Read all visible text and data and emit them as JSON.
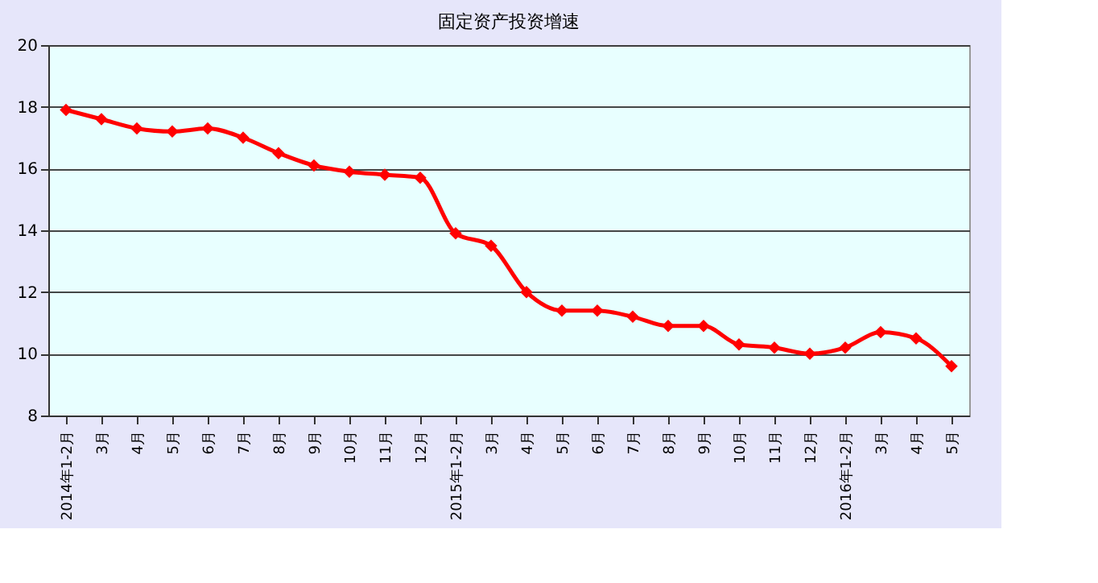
{
  "chart_data": {
    "type": "line",
    "title": "固定资产投资增速",
    "categories": [
      "2014年1-2月",
      "3月",
      "4月",
      "5月",
      "6月",
      "7月",
      "8月",
      "9月",
      "10月",
      "11月",
      "12月",
      "2015年1-2月",
      "3月",
      "4月",
      "5月",
      "6月",
      "7月",
      "8月",
      "9月",
      "10月",
      "11月",
      "12月",
      "2016年1-2月",
      "3月",
      "4月",
      "5月"
    ],
    "series": [
      {
        "color": "#ff0000",
        "values": [
          17.9,
          17.6,
          17.3,
          17.2,
          17.3,
          17.0,
          16.5,
          16.1,
          15.9,
          15.8,
          15.7,
          13.9,
          13.5,
          12.0,
          11.4,
          11.4,
          11.2,
          10.9,
          10.9,
          10.3,
          10.2,
          10.0,
          10.2,
          10.7,
          10.5,
          9.6
        ]
      }
    ],
    "ylim": [
      8,
      20
    ],
    "yticks": [
      8,
      10,
      12,
      14,
      16,
      18,
      20
    ],
    "grid": "y",
    "marker": "diamond",
    "line_style": "solid"
  }
}
